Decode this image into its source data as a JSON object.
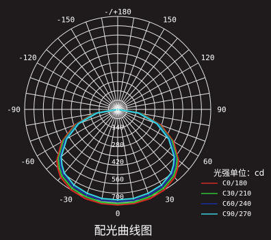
{
  "chart_data": {
    "type": "polar",
    "title": "配光曲线图",
    "unit_label": "光强单位：cd",
    "top_label": "-/+180",
    "angle_labels": [
      {
        "angle": -150,
        "text": "-150"
      },
      {
        "angle": 150,
        "text": "150"
      },
      {
        "angle": -120,
        "text": "-120"
      },
      {
        "angle": 120,
        "text": "120"
      },
      {
        "angle": -90,
        "text": "-90"
      },
      {
        "angle": 90,
        "text": "90"
      },
      {
        "angle": -60,
        "text": "-60"
      },
      {
        "angle": 60,
        "text": "60"
      },
      {
        "angle": -30,
        "text": "-30"
      },
      {
        "angle": 30,
        "text": "30"
      },
      {
        "angle": 0,
        "text": "0"
      }
    ],
    "radial_ticks": [
      0,
      140,
      280,
      420,
      560,
      700
    ],
    "rmax": 750,
    "series": [
      {
        "name": "C0/180",
        "color": "#d42b24",
        "angles": [
          -90,
          -80,
          -70,
          -60,
          -50,
          -45,
          -40,
          -30,
          -20,
          -10,
          0,
          10,
          20,
          30,
          40,
          45,
          50,
          60,
          70,
          80,
          90
        ],
        "values": [
          0,
          200,
          370,
          520,
          640,
          680,
          715,
          750,
          765,
          770,
          770,
          770,
          765,
          750,
          715,
          680,
          640,
          520,
          370,
          200,
          0
        ]
      },
      {
        "name": "C30/210",
        "color": "#31c23a",
        "angles": [
          -90,
          -80,
          -70,
          -60,
          -50,
          -45,
          -40,
          -30,
          -20,
          -10,
          0,
          10,
          20,
          30,
          40,
          45,
          50,
          60,
          70,
          80,
          90
        ],
        "values": [
          0,
          190,
          355,
          505,
          625,
          665,
          700,
          735,
          750,
          760,
          760,
          760,
          750,
          735,
          700,
          665,
          625,
          505,
          355,
          190,
          0
        ]
      },
      {
        "name": "C60/240",
        "color": "#1b2f9e",
        "angles": [
          -90,
          -80,
          -70,
          -60,
          -50,
          -45,
          -40,
          -30,
          -20,
          -10,
          0,
          10,
          20,
          30,
          40,
          45,
          50,
          60,
          70,
          80,
          90
        ],
        "values": [
          0,
          180,
          345,
          490,
          610,
          650,
          685,
          720,
          735,
          745,
          745,
          745,
          735,
          720,
          685,
          650,
          610,
          490,
          345,
          180,
          0
        ]
      },
      {
        "name": "C90/270",
        "color": "#3ad0de",
        "angles": [
          -90,
          -80,
          -70,
          -60,
          -50,
          -45,
          -40,
          -30,
          -20,
          -10,
          0,
          10,
          20,
          30,
          40,
          45,
          50,
          60,
          70,
          80,
          90
        ],
        "values": [
          0,
          170,
          335,
          475,
          595,
          635,
          670,
          705,
          720,
          730,
          730,
          730,
          720,
          705,
          670,
          635,
          595,
          475,
          335,
          170,
          0
        ]
      }
    ]
  }
}
